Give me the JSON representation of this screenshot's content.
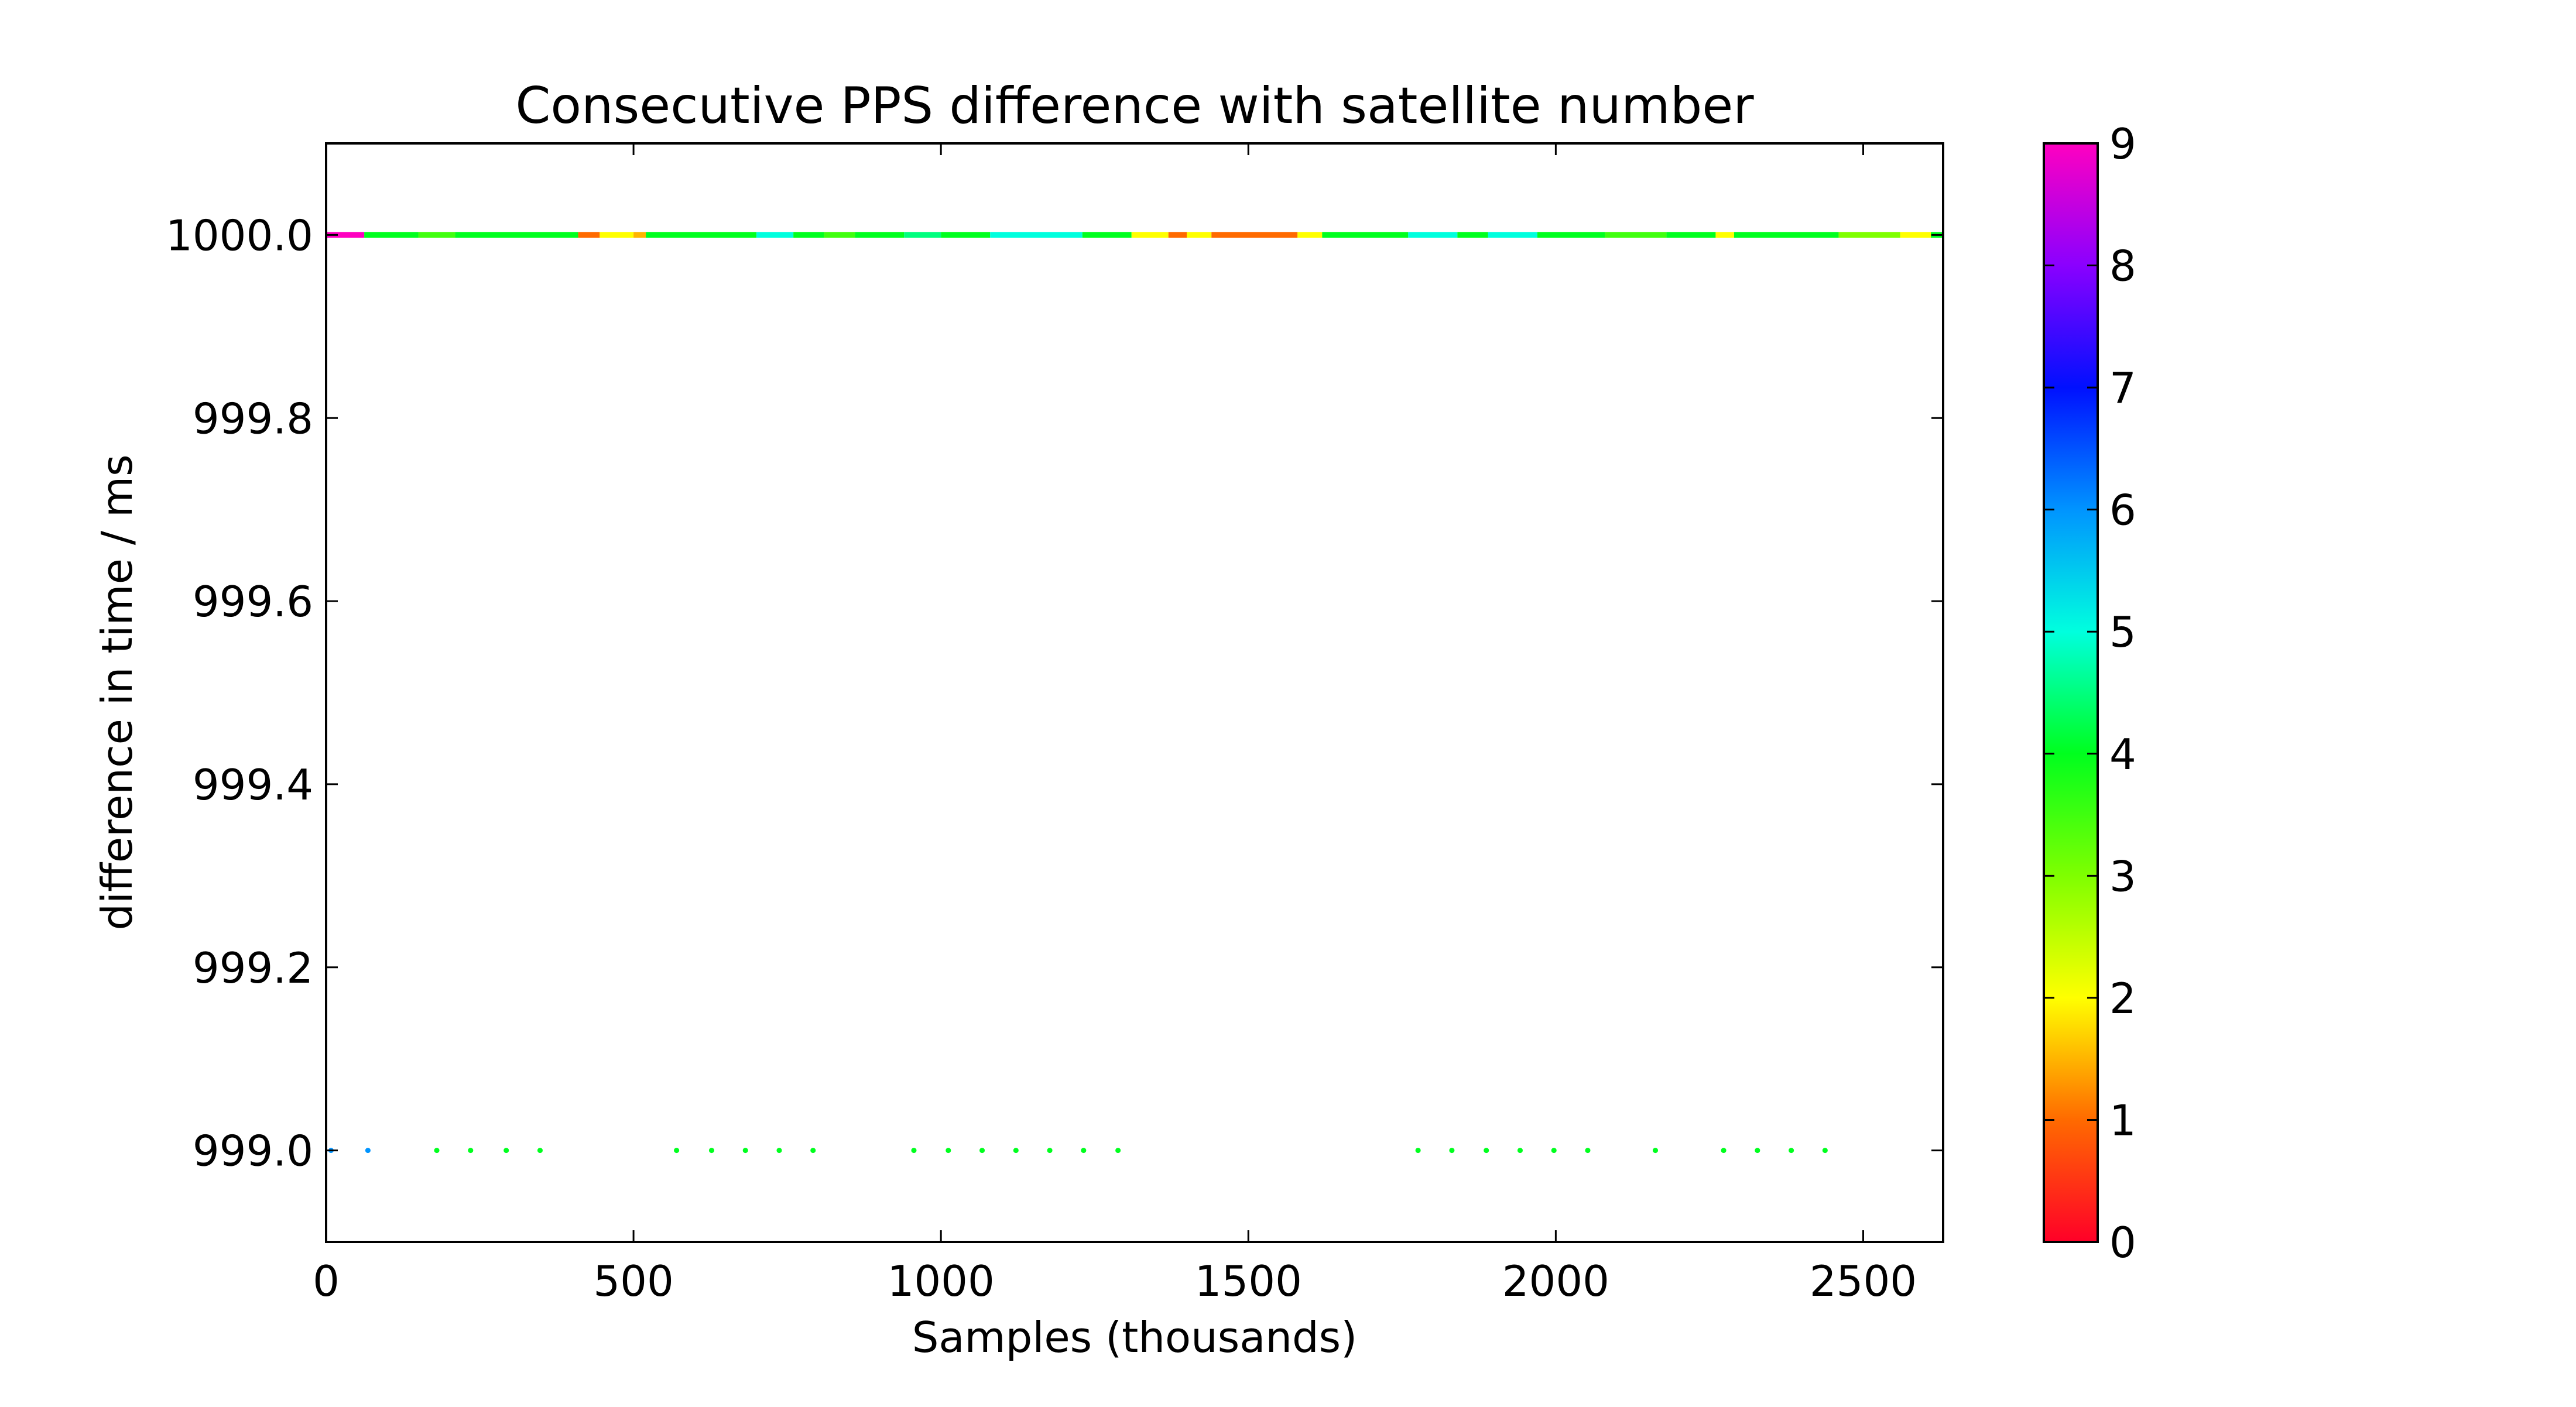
{
  "chart_data": {
    "type": "scatter",
    "title": "Consecutive PPS difference with satellite number",
    "xlabel": "Samples (thousands)",
    "ylabel": "difference in time / ms",
    "xlim": [
      0,
      2630
    ],
    "ylim": [
      998.9,
      1000.1
    ],
    "xticks": [
      0,
      500,
      1000,
      1500,
      2000,
      2500
    ],
    "xtick_labels": [
      "0",
      "500",
      "1000",
      "1500",
      "2000",
      "2500"
    ],
    "yticks": [
      999.0,
      999.2,
      999.4,
      999.6,
      999.8,
      1000.0
    ],
    "ytick_labels": [
      "999.0",
      "999.2",
      "999.4",
      "999.6",
      "999.8",
      "1000.0"
    ],
    "grid": false,
    "colorbar": {
      "label": "",
      "min": 0,
      "max": 9,
      "ticks": [
        0,
        1,
        2,
        3,
        4,
        5,
        6,
        7,
        8,
        9
      ],
      "tick_labels": [
        "0",
        "1",
        "2",
        "3",
        "4",
        "5",
        "6",
        "7",
        "8",
        "9"
      ],
      "colormap": "gist_rainbow",
      "stops": [
        {
          "value": 0,
          "color": "#ff0028"
        },
        {
          "value": 1,
          "color": "#ff6a00"
        },
        {
          "value": 2,
          "color": "#ffff00"
        },
        {
          "value": 3,
          "color": "#7fff00"
        },
        {
          "value": 4,
          "color": "#00ff1e"
        },
        {
          "value": 5,
          "color": "#00ffde"
        },
        {
          "value": 6,
          "color": "#0094ff"
        },
        {
          "value": 7,
          "color": "#0010ff"
        },
        {
          "value": 8,
          "color": "#8a00ff"
        },
        {
          "value": 9,
          "color": "#ff00c0"
        }
      ]
    },
    "series_1000": [
      {
        "x_start": 0,
        "x_end": 62,
        "sat": 9
      },
      {
        "x_start": 62,
        "x_end": 150,
        "sat": 4
      },
      {
        "x_start": 150,
        "x_end": 210,
        "sat": 3.5
      },
      {
        "x_start": 210,
        "x_end": 410,
        "sat": 4
      },
      {
        "x_start": 410,
        "x_end": 445,
        "sat": 1
      },
      {
        "x_start": 445,
        "x_end": 500,
        "sat": 2
      },
      {
        "x_start": 500,
        "x_end": 520,
        "sat": 1.5
      },
      {
        "x_start": 520,
        "x_end": 700,
        "sat": 4
      },
      {
        "x_start": 700,
        "x_end": 760,
        "sat": 5
      },
      {
        "x_start": 760,
        "x_end": 810,
        "sat": 4
      },
      {
        "x_start": 810,
        "x_end": 860,
        "sat": 3.5
      },
      {
        "x_start": 860,
        "x_end": 940,
        "sat": 4
      },
      {
        "x_start": 940,
        "x_end": 1000,
        "sat": 4.5
      },
      {
        "x_start": 1000,
        "x_end": 1080,
        "sat": 4
      },
      {
        "x_start": 1080,
        "x_end": 1230,
        "sat": 5
      },
      {
        "x_start": 1230,
        "x_end": 1310,
        "sat": 4
      },
      {
        "x_start": 1310,
        "x_end": 1370,
        "sat": 2
      },
      {
        "x_start": 1370,
        "x_end": 1400,
        "sat": 1
      },
      {
        "x_start": 1400,
        "x_end": 1440,
        "sat": 2
      },
      {
        "x_start": 1440,
        "x_end": 1580,
        "sat": 1
      },
      {
        "x_start": 1580,
        "x_end": 1620,
        "sat": 2
      },
      {
        "x_start": 1620,
        "x_end": 1760,
        "sat": 4
      },
      {
        "x_start": 1760,
        "x_end": 1840,
        "sat": 5
      },
      {
        "x_start": 1840,
        "x_end": 1890,
        "sat": 4
      },
      {
        "x_start": 1890,
        "x_end": 1970,
        "sat": 5
      },
      {
        "x_start": 1970,
        "x_end": 2080,
        "sat": 4
      },
      {
        "x_start": 2080,
        "x_end": 2180,
        "sat": 3.5
      },
      {
        "x_start": 2180,
        "x_end": 2260,
        "sat": 4
      },
      {
        "x_start": 2260,
        "x_end": 2290,
        "sat": 2
      },
      {
        "x_start": 2290,
        "x_end": 2460,
        "sat": 4
      },
      {
        "x_start": 2460,
        "x_end": 2560,
        "sat": 3
      },
      {
        "x_start": 2560,
        "x_end": 2610,
        "sat": 2
      },
      {
        "x_start": 2610,
        "x_end": 2630,
        "sat": 4
      }
    ],
    "points_999": [
      {
        "x": 8,
        "y": 999.0,
        "sat": 6
      },
      {
        "x": 68,
        "y": 999.0,
        "sat": 6
      },
      {
        "x": 180,
        "y": 999.0,
        "sat": 4
      },
      {
        "x": 235,
        "y": 999.0,
        "sat": 4
      },
      {
        "x": 293,
        "y": 999.0,
        "sat": 4
      },
      {
        "x": 348,
        "y": 999.0,
        "sat": 4
      },
      {
        "x": 570,
        "y": 999.0,
        "sat": 4
      },
      {
        "x": 627,
        "y": 999.0,
        "sat": 4
      },
      {
        "x": 682,
        "y": 999.0,
        "sat": 4
      },
      {
        "x": 737,
        "y": 999.0,
        "sat": 4
      },
      {
        "x": 792,
        "y": 999.0,
        "sat": 4
      },
      {
        "x": 956,
        "y": 999.0,
        "sat": 4
      },
      {
        "x": 1012,
        "y": 999.0,
        "sat": 4
      },
      {
        "x": 1067,
        "y": 999.0,
        "sat": 4
      },
      {
        "x": 1122,
        "y": 999.0,
        "sat": 4
      },
      {
        "x": 1177,
        "y": 999.0,
        "sat": 4
      },
      {
        "x": 1232,
        "y": 999.0,
        "sat": 4
      },
      {
        "x": 1288,
        "y": 999.0,
        "sat": 4
      },
      {
        "x": 1776,
        "y": 999.0,
        "sat": 4
      },
      {
        "x": 1831,
        "y": 999.0,
        "sat": 4
      },
      {
        "x": 1887,
        "y": 999.0,
        "sat": 4
      },
      {
        "x": 1942,
        "y": 999.0,
        "sat": 4
      },
      {
        "x": 1997,
        "y": 999.0,
        "sat": 4
      },
      {
        "x": 2052,
        "y": 999.0,
        "sat": 4
      },
      {
        "x": 2162,
        "y": 999.0,
        "sat": 4
      },
      {
        "x": 2273,
        "y": 999.0,
        "sat": 4
      },
      {
        "x": 2328,
        "y": 999.0,
        "sat": 4
      },
      {
        "x": 2383,
        "y": 999.0,
        "sat": 4
      },
      {
        "x": 2438,
        "y": 999.0,
        "sat": 4
      }
    ]
  }
}
